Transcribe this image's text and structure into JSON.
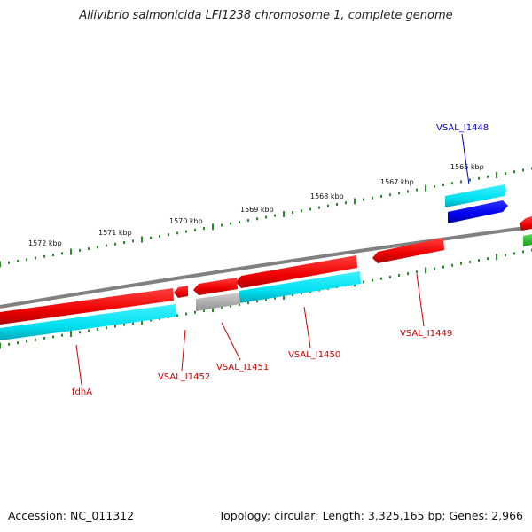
{
  "title": "Aliivibrio salmonicida LFI1238 chromosome 1, complete genome",
  "footer": {
    "accession": "Accession: NC_011312",
    "summary": "Topology: circular; Length: 3,325,165 bp; Genes: 2,966"
  },
  "scale_labels": [
    "1566 kbp",
    "1567 kbp",
    "1568 kbp",
    "1569 kbp",
    "1570 kbp",
    "1571 kbp",
    "1572 kbp"
  ],
  "gene_labels": [
    {
      "text": "VSAL_I1448",
      "color": "#0000cc"
    },
    {
      "text": "VSAL_I1449",
      "color": "#cc0000"
    },
    {
      "text": "VSAL_I1450",
      "color": "#cc0000"
    },
    {
      "text": "VSAL_I1451",
      "color": "#cc0000"
    },
    {
      "text": "VSAL_I1452",
      "color": "#cc0000"
    },
    {
      "text": "fdhA",
      "color": "#cc0000"
    }
  ],
  "colors": {
    "backbone": "#808080",
    "cds_red": "#ff0000",
    "cds_cyan": "#00e5ee",
    "cds_blue": "#0000ff",
    "cds_gray": "#b0b0b0",
    "cds_green": "#33cc33",
    "tick_green": "#2e8b2e"
  }
}
